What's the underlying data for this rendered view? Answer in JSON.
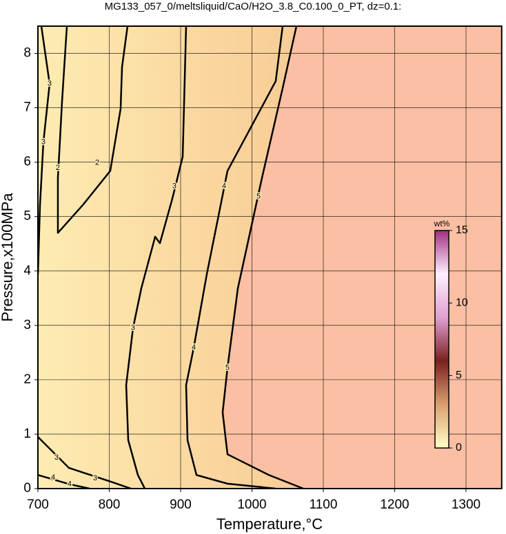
{
  "chart_data": {
    "type": "contour",
    "title": "MG133_057_0/meltsliquid/CaO/H2O_3.8_C0.100_0_PT, dz=0.1:",
    "x_label": "Temperature,°C",
    "y_label": "Pressure,x100MPa",
    "xlim": [
      700,
      1350
    ],
    "ylim": [
      0,
      8.5
    ],
    "xticks": [
      700,
      800,
      900,
      1000,
      1100,
      1200,
      1300
    ],
    "yticks": [
      0,
      1,
      2,
      3,
      4,
      5,
      6,
      7,
      8
    ],
    "grid": true,
    "line_color": "#000000",
    "fill_low_colors": [
      "#fdecb2",
      "#f8cb94"
    ],
    "fill_high_color": "#fbbfa3",
    "contours": [
      {
        "level": 2,
        "x": [
          740.6,
          733.8,
          728,
          728,
          762.8,
          801.4,
          815.9,
          817.9,
          825.6
        ],
        "y": [
          8.5,
          7.11,
          5.71,
          4.7,
          5.21,
          5.84,
          6.98,
          7.75,
          8.5
        ]
      },
      {
        "level": 3,
        "x": [
          907.7,
          902.9,
          888.4,
          871.0,
          864.3,
          844.9,
          833.3,
          823.7,
          826.6,
          840.1,
          849.8
        ],
        "y": [
          8.5,
          6.1,
          5.33,
          4.51,
          4.63,
          3.68,
          2.95,
          1.9,
          0.89,
          0.25,
          0
        ]
      },
      {
        "level": 3,
        "x": [
          704.8,
          716.4,
          707.7,
          702.9,
          700
        ],
        "y": [
          8.5,
          7.44,
          6.37,
          5.21,
          3.94
        ]
      },
      {
        "level": 3,
        "x": [
          700,
          743.5,
          801.4,
          830.4
        ],
        "y": [
          0.95,
          0.38,
          0.13,
          0
        ]
      },
      {
        "level": 4,
        "x": [
          1043,
          1033.3,
          965.7,
          936.7,
          918.4,
          907.7,
          909.7,
          922.2,
          965.7,
          1033.3
        ],
        "y": [
          8.5,
          7.49,
          5.84,
          3.94,
          2.59,
          1.9,
          0.89,
          0.25,
          0.09,
          0
        ]
      },
      {
        "level": 4,
        "x": [
          700,
          744.4,
          772.5
        ],
        "y": [
          0.25,
          0.08,
          0
        ]
      },
      {
        "level": 5,
        "x": [
          1062.3,
          1043,
          1014,
          980.2,
          965.7,
          958.9,
          965.7,
          1023.7,
          1072
        ],
        "y": [
          8.5,
          7.36,
          5.71,
          3.68,
          2.22,
          1.4,
          0.63,
          0.25,
          0
        ]
      }
    ],
    "contour_labels": [
      {
        "text": "3",
        "x": 716.4,
        "y": 7.44
      },
      {
        "text": "3",
        "x": 707.7,
        "y": 6.37
      },
      {
        "text": "2",
        "x": 728,
        "y": 5.89
      },
      {
        "text": "2",
        "x": 783.1,
        "y": 5.99
      },
      {
        "text": "3",
        "x": 891.3,
        "y": 5.56
      },
      {
        "text": "4",
        "x": 960.9,
        "y": 5.56
      },
      {
        "text": "5",
        "x": 1009.2,
        "y": 5.37
      },
      {
        "text": "3",
        "x": 833.3,
        "y": 2.95
      },
      {
        "text": "4",
        "x": 918.4,
        "y": 2.59
      },
      {
        "text": "5",
        "x": 965.7,
        "y": 2.22
      },
      {
        "text": "3",
        "x": 726.1,
        "y": 0.57
      },
      {
        "text": "3",
        "x": 780.2,
        "y": 0.19
      },
      {
        "text": "4",
        "x": 721.3,
        "y": 0.2
      },
      {
        "text": "4",
        "x": 744.4,
        "y": 0.08
      }
    ],
    "colorbar": {
      "label": "wt%",
      "lim": [
        0,
        15
      ],
      "ticks": [
        0,
        5,
        10,
        15
      ],
      "colors": [
        "#ffffc8",
        "#d9a070",
        "#7a2020",
        "#e0a0d0",
        "#fff0ff",
        "#a03080"
      ]
    }
  }
}
